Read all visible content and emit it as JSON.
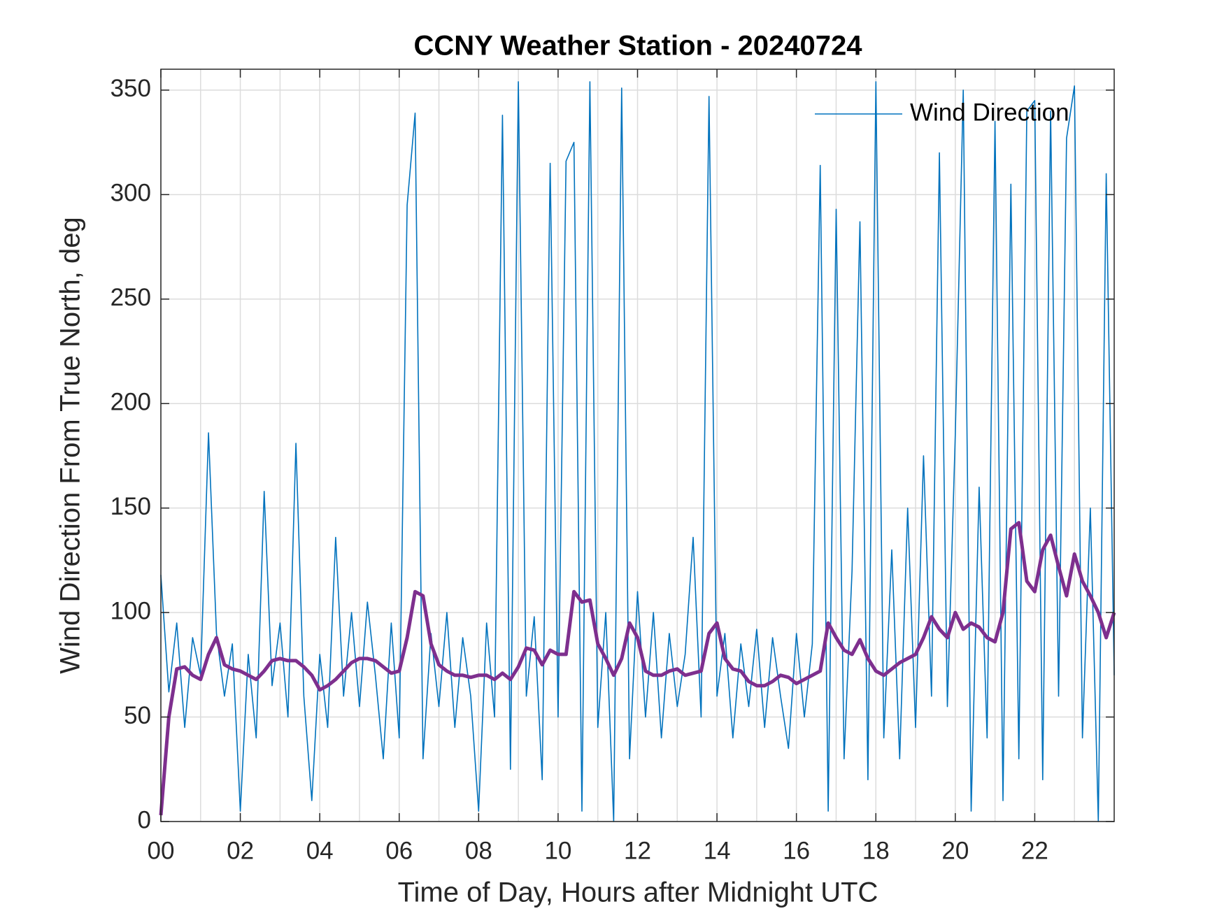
{
  "chart_data": {
    "type": "line",
    "title": "CCNY Weather Station - 20240724",
    "xlabel": "Time of Day, Hours after Midnight UTC",
    "ylabel": "Wind Direction From True North, deg",
    "x": [
      0,
      0.2,
      0.4,
      0.6,
      0.8,
      1,
      1.2,
      1.4,
      1.6,
      1.8,
      2,
      2.2,
      2.4,
      2.6,
      2.8,
      3,
      3.2,
      3.4,
      3.6,
      3.8,
      4,
      4.2,
      4.4,
      4.6,
      4.8,
      5,
      5.2,
      5.4,
      5.6,
      5.8,
      6,
      6.2,
      6.4,
      6.6,
      6.8,
      7,
      7.2,
      7.4,
      7.6,
      7.8,
      8,
      8.2,
      8.4,
      8.6,
      8.8,
      9,
      9.2,
      9.4,
      9.6,
      9.8,
      10,
      10.2,
      10.4,
      10.6,
      10.8,
      11,
      11.2,
      11.4,
      11.6,
      11.8,
      12,
      12.2,
      12.4,
      12.6,
      12.8,
      13,
      13.2,
      13.4,
      13.6,
      13.8,
      14,
      14.2,
      14.4,
      14.6,
      14.8,
      15,
      15.2,
      15.4,
      15.6,
      15.8,
      16,
      16.2,
      16.4,
      16.6,
      16.8,
      17,
      17.2,
      17.4,
      17.6,
      17.8,
      18,
      18.2,
      18.4,
      18.6,
      18.8,
      19,
      19.2,
      19.4,
      19.6,
      19.8,
      20,
      20.2,
      20.4,
      20.6,
      20.8,
      21,
      21.2,
      21.4,
      21.6,
      21.8,
      22,
      22.2,
      22.4,
      22.6,
      22.8,
      23,
      23.2,
      23.4,
      23.6,
      23.8,
      24
    ],
    "series": [
      {
        "name": "Wind Direction",
        "color": "#0072BD",
        "width": 1.6,
        "values": [
          118,
          62,
          95,
          45,
          88,
          70,
          186,
          90,
          60,
          85,
          5,
          80,
          40,
          158,
          65,
          95,
          50,
          181,
          60,
          10,
          80,
          45,
          136,
          60,
          100,
          55,
          105,
          70,
          30,
          95,
          40,
          295,
          339,
          30,
          90,
          55,
          100,
          45,
          88,
          60,
          5,
          95,
          50,
          338,
          25,
          354,
          60,
          98,
          20,
          315,
          50,
          316,
          325,
          5,
          354,
          45,
          100,
          0,
          351,
          30,
          110,
          50,
          100,
          40,
          90,
          55,
          80,
          136,
          50,
          347,
          60,
          90,
          40,
          85,
          55,
          92,
          45,
          88,
          60,
          35,
          90,
          50,
          85,
          314,
          5,
          293,
          30,
          120,
          287,
          20,
          354,
          40,
          130,
          30,
          150,
          45,
          175,
          60,
          320,
          55,
          185,
          350,
          5,
          160,
          40,
          335,
          10,
          305,
          30,
          340,
          345,
          20,
          340,
          60,
          327,
          352,
          40,
          150,
          0,
          310,
          70
        ]
      },
      {
        "color": "#7E2F8E",
        "width": 5,
        "values": [
          3,
          50,
          73,
          74,
          70,
          68,
          80,
          88,
          75,
          73,
          72,
          70,
          68,
          72,
          77,
          78,
          77,
          77,
          74,
          70,
          63,
          65,
          68,
          72,
          76,
          78,
          78,
          77,
          74,
          71,
          72,
          88,
          110,
          108,
          85,
          75,
          72,
          70,
          70,
          69,
          70,
          70,
          68,
          71,
          68,
          74,
          83,
          82,
          75,
          82,
          80,
          80,
          110,
          105,
          106,
          85,
          78,
          70,
          78,
          95,
          88,
          72,
          70,
          70,
          72,
          73,
          70,
          71,
          72,
          90,
          95,
          78,
          73,
          72,
          67,
          65,
          65,
          67,
          70,
          69,
          66,
          68,
          70,
          72,
          95,
          88,
          82,
          80,
          87,
          78,
          72,
          70,
          73,
          76,
          78,
          80,
          88,
          98,
          92,
          88,
          100,
          92,
          95,
          93,
          88,
          86,
          100,
          140,
          143,
          115,
          110,
          130,
          137,
          122,
          108,
          128,
          115,
          108,
          100,
          88,
          100
        ]
      }
    ],
    "xlim": [
      0,
      24
    ],
    "ylim": [
      0,
      360
    ],
    "xticks": [
      {
        "value": 0,
        "label": "00"
      },
      {
        "value": 2,
        "label": "02"
      },
      {
        "value": 4,
        "label": "04"
      },
      {
        "value": 6,
        "label": "06"
      },
      {
        "value": 8,
        "label": "08"
      },
      {
        "value": 10,
        "label": "10"
      },
      {
        "value": 12,
        "label": "12"
      },
      {
        "value": 14,
        "label": "14"
      },
      {
        "value": 16,
        "label": "16"
      },
      {
        "value": 18,
        "label": "18"
      },
      {
        "value": 20,
        "label": "20"
      },
      {
        "value": 22,
        "label": "22"
      }
    ],
    "xgrid_minor": [
      1,
      3,
      5,
      7,
      9,
      11,
      13,
      15,
      17,
      19,
      21,
      23
    ],
    "yticks": [
      0,
      50,
      100,
      150,
      200,
      250,
      300,
      350
    ],
    "grid": true,
    "legend": "northeast"
  }
}
